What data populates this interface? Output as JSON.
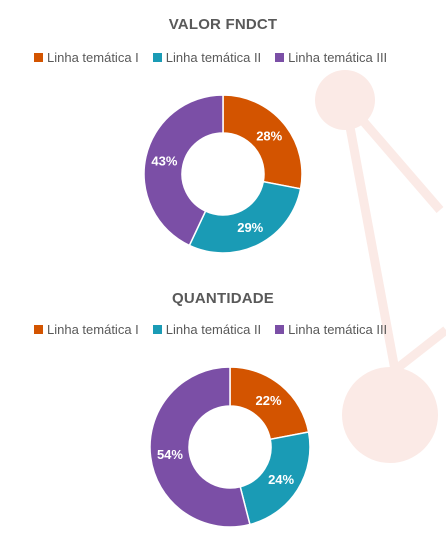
{
  "colors": {
    "series": [
      "#d35400",
      "#1a9bb5",
      "#7b4fa6"
    ],
    "title": "#595959",
    "background_decoration": "#fbeae6"
  },
  "chart_data": [
    {
      "type": "pie",
      "title": "VALOR FNDCT",
      "categories": [
        "Linha temática I",
        "Linha temática II",
        "Linha temática III"
      ],
      "values": [
        28,
        29,
        43
      ],
      "labels": [
        "28%",
        "29%",
        "43%"
      ],
      "legend": {
        "entries": [
          "Linha temática I",
          "Linha temática II",
          "Linha temática III"
        ],
        "placement": "top"
      }
    },
    {
      "type": "pie",
      "title": "QUANTIDADE",
      "categories": [
        "Linha temática I",
        "Linha temática II",
        "Linha temática III"
      ],
      "values": [
        22,
        24,
        54
      ],
      "labels": [
        "22%",
        "24%",
        "54%"
      ],
      "legend": {
        "entries": [
          "Linha temática I",
          "Linha temática II",
          "Linha temática III"
        ],
        "placement": "top"
      }
    }
  ]
}
